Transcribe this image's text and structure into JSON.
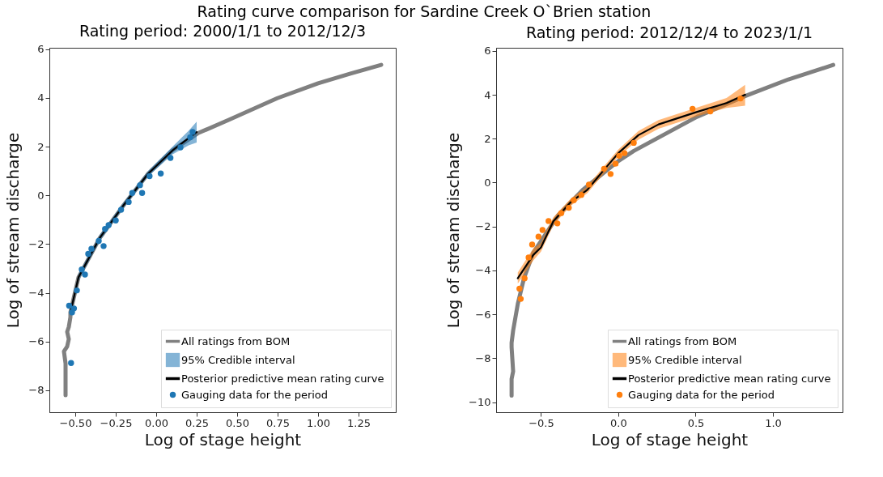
{
  "chart_data": [
    {
      "type": "line",
      "title": "Rating period: 2000/1/1 to 2012/12/3",
      "xlabel": "Log of stage height",
      "ylabel": "Log of stream discharge",
      "annotations": [
        "Rating curve comparison for Sardine Creek O`Brien station"
      ],
      "legend": "bottom right",
      "xlim": [
        -0.66,
        1.48
      ],
      "ylim": [
        -8.9,
        6.06
      ],
      "xticks": [
        {
          "value": -0.5,
          "label": "−0.50"
        },
        {
          "value": -0.25,
          "label": "−0.25"
        },
        {
          "value": 0,
          "label": "0.00"
        },
        {
          "value": 0.25,
          "label": "0.25"
        },
        {
          "value": 0.5,
          "label": "0.50"
        },
        {
          "value": 0.75,
          "label": "0.75"
        },
        {
          "value": 1,
          "label": "1.00"
        },
        {
          "value": 1.25,
          "label": "1.25"
        }
      ],
      "yticks": [
        {
          "value": -8,
          "label": "−8"
        },
        {
          "value": -6,
          "label": "−6"
        },
        {
          "value": -4,
          "label": "−4"
        },
        {
          "value": -2,
          "label": "−2"
        },
        0,
        2,
        4,
        6
      ],
      "series": [
        {
          "name": "All ratings from BOM",
          "type": "line",
          "color": "#808080",
          "x": [
            -0.56,
            -0.56,
            -0.56,
            -0.57,
            -0.55,
            -0.54,
            -0.55,
            -0.54,
            -0.53,
            -0.53,
            -0.48,
            -0.35,
            -0.2,
            -0.05,
            0.1,
            0.257,
            0.454,
            0.748,
            1.0,
            1.2,
            1.39
          ],
          "values": [
            -8.2,
            -7.3,
            -6.9,
            -6.4,
            -6.2,
            -5.9,
            -5.6,
            -5.4,
            -5.0,
            -4.8,
            -3.36,
            -1.76,
            -0.39,
            0.89,
            1.85,
            2.55,
            3.12,
            3.99,
            4.6,
            5.0,
            5.36
          ]
        },
        {
          "name": "95% Credible interval",
          "type": "area",
          "color": "#1f77b4"
        },
        {
          "name": "Posterior predictive mean rating curve",
          "type": "line",
          "color": "#000000",
          "x": [
            -0.53,
            -0.48,
            -0.35,
            -0.2,
            -0.05,
            0.1,
            0.2,
            0.25
          ],
          "values": [
            -4.8,
            -3.36,
            -1.76,
            -0.39,
            0.89,
            1.84,
            2.35,
            2.6
          ],
          "upper": [
            -4.65,
            -3.22,
            -1.64,
            -0.28,
            1.0,
            2.0,
            2.65,
            3.03
          ],
          "lower": [
            -4.95,
            -3.5,
            -1.88,
            -0.5,
            0.78,
            1.68,
            2.05,
            2.17
          ]
        },
        {
          "name": "Gauging data for the period",
          "type": "scatter",
          "marker": "circle",
          "color": "#1f77b4",
          "x": [
            -0.526,
            -0.52,
            -0.538,
            -0.508,
            -0.49,
            -0.46,
            -0.44,
            -0.42,
            -0.4,
            -0.355,
            -0.325,
            -0.316,
            -0.294,
            -0.25,
            -0.217,
            -0.17,
            -0.148,
            -0.1,
            -0.087,
            -0.041,
            0.028,
            0.088,
            0.15,
            0.21,
            0.225
          ],
          "values": [
            -6.88,
            -4.8,
            -4.53,
            -4.64,
            -3.9,
            -3.04,
            -3.25,
            -2.4,
            -2.19,
            -1.87,
            -2.08,
            -1.38,
            -1.22,
            -1.03,
            -0.59,
            -0.27,
            0.1,
            0.42,
            0.1,
            0.79,
            0.9,
            1.54,
            1.97,
            2.39,
            2.6
          ]
        }
      ]
    },
    {
      "type": "line",
      "title": "Rating period: 2012/12/4 to 2023/1/1",
      "xlabel": "Log of stage height",
      "ylabel": "Log of stream discharge",
      "legend": "bottom right",
      "xlim": [
        -0.79,
        1.45
      ],
      "ylim": [
        -10.46,
        6.14
      ],
      "xticks": [
        {
          "value": -0.5,
          "label": "−0.5"
        },
        {
          "value": 0,
          "label": "0.0"
        },
        {
          "value": 0.5,
          "label": "0.5"
        },
        {
          "value": 1,
          "label": "1.0"
        }
      ],
      "yticks": [
        {
          "value": -10,
          "label": "−10"
        },
        {
          "value": -8,
          "label": "−8"
        },
        {
          "value": -6,
          "label": "−6"
        },
        {
          "value": -4,
          "label": "−4"
        },
        {
          "value": -2,
          "label": "−2"
        },
        0,
        2,
        4,
        6
      ],
      "series": [
        {
          "name": "All ratings from BOM",
          "type": "line",
          "color": "#808080",
          "x": [
            -0.69,
            -0.69,
            -0.69,
            -0.68,
            -0.69,
            -0.69,
            -0.68,
            -0.65,
            -0.61,
            -0.55,
            -0.39,
            -0.23,
            0,
            0.1,
            0.51,
            0.82,
            1.1,
            1.39
          ],
          "values": [
            -9.7,
            -9.5,
            -8.95,
            -8.6,
            -7.5,
            -7.3,
            -6.74,
            -5.53,
            -4.36,
            -3.2,
            -1.5,
            -0.33,
            0.98,
            1.44,
            3.0,
            3.94,
            4.7,
            5.36
          ]
        },
        {
          "name": "95% Credible interval",
          "type": "area",
          "color": "#ff7f0e"
        },
        {
          "name": "Posterior predictive mean rating curve",
          "type": "line",
          "color": "#000000",
          "x": [
            -0.65,
            -0.55,
            -0.5,
            -0.42,
            -0.31,
            -0.2,
            -0.1,
            0,
            0.13,
            0.26,
            0.51,
            0.7,
            0.82
          ],
          "values": [
            -4.36,
            -3.3,
            -2.95,
            -1.76,
            -0.91,
            -0.33,
            0.52,
            1.34,
            2.16,
            2.65,
            3.22,
            3.62,
            4.0
          ],
          "upper": [
            -4.1,
            -3.0,
            -2.75,
            -1.58,
            -0.75,
            -0.18,
            0.68,
            1.5,
            2.35,
            2.85,
            3.42,
            3.85,
            4.45
          ],
          "lower": [
            -4.6,
            -3.55,
            -3.15,
            -1.94,
            -1.07,
            -0.48,
            0.36,
            1.18,
            1.95,
            2.45,
            3.02,
            3.4,
            3.5
          ]
        },
        {
          "name": "Gauging data for the period",
          "type": "scatter",
          "marker": "circle",
          "color": "#ff7f0e",
          "x": [
            -0.639,
            -0.631,
            -0.606,
            -0.58,
            -0.557,
            -0.516,
            -0.49,
            -0.451,
            -0.394,
            -0.369,
            -0.32,
            -0.288,
            -0.239,
            -0.19,
            -0.092,
            -0.05,
            -0.018,
            0.006,
            0.04,
            0.1,
            0.48,
            0.595,
            0.79
          ],
          "values": [
            -4.83,
            -5.3,
            -4.36,
            -3.41,
            -2.82,
            -2.46,
            -2.16,
            -1.75,
            -1.86,
            -1.39,
            -1.15,
            -0.8,
            -0.56,
            -0.09,
            0.63,
            0.39,
            0.86,
            1.22,
            1.34,
            1.81,
            3.36,
            3.24,
            3.83
          ]
        }
      ]
    }
  ]
}
